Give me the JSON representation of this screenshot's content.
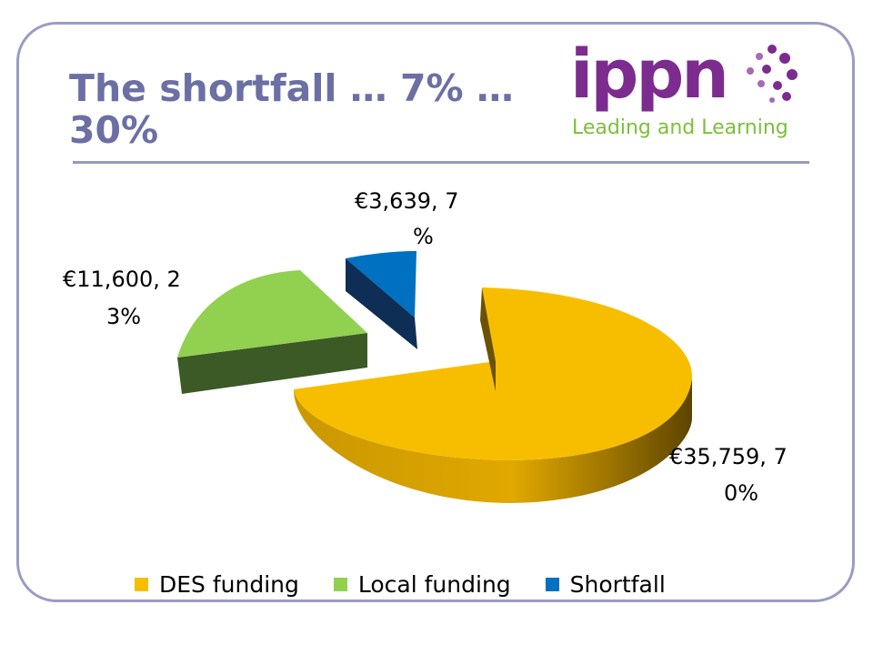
{
  "slide": {
    "title": "The shortfall … 7% … 30%"
  },
  "logo": {
    "wordmark": "ippn",
    "tagline": "Leading and Learning",
    "colors": {
      "wordmark": "#7b2c8e",
      "tagline": "#7cbf3a"
    }
  },
  "chart_data": {
    "type": "pie",
    "style": "3d-exploded",
    "title": "",
    "legend_position": "bottom",
    "slices": [
      {
        "name": "DES funding",
        "value": 35759,
        "label_line1": "€35,759, 7",
        "label_line2": "0%",
        "color": "#f7be00"
      },
      {
        "name": "Local funding",
        "value": 11600,
        "label_line1": "€11,600, 2",
        "label_line2": "3%",
        "color": "#92d050"
      },
      {
        "name": "Shortfall",
        "value": 3639,
        "label_line1": "€3,639, 7",
        "label_line2": "%",
        "color": "#0070c0"
      }
    ]
  }
}
